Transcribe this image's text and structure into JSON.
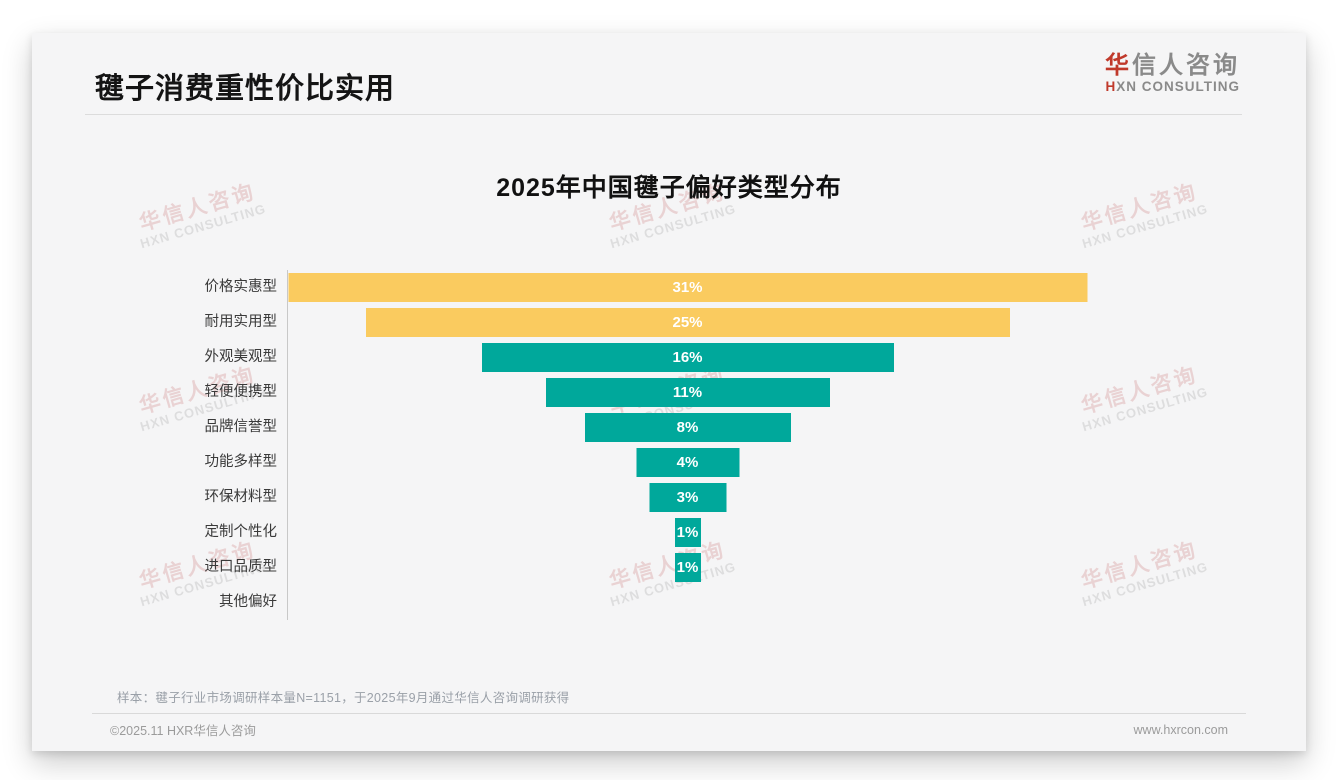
{
  "header": {
    "title": "毽子消费重性价比实用"
  },
  "logo": {
    "cn_first": "华",
    "cn_rest": "信人咨询",
    "en_first": "H",
    "en_rest": "XN CONSULTING"
  },
  "watermark": {
    "line1": "华信人咨询",
    "line2": "HXN CONSULTING"
  },
  "chart_data": {
    "type": "bar",
    "orientation": "horizontal-centered-funnel",
    "title": "2025年中国毽子偏好类型分布",
    "categories": [
      "价格实惠型",
      "耐用实用型",
      "外观美观型",
      "轻便便携型",
      "品牌信誉型",
      "功能多样型",
      "环保材料型",
      "定制个性化",
      "进口品质型",
      "其他偏好"
    ],
    "values": [
      31,
      25,
      16,
      11,
      8,
      4,
      3,
      1,
      1,
      0
    ],
    "unit": "%",
    "xlim": [
      0,
      31
    ],
    "bar_colors": [
      "#FACB5F",
      "#FACB5F",
      "#00A89B",
      "#00A89B",
      "#00A89B",
      "#00A89B",
      "#00A89B",
      "#00A89B",
      "#00A89B",
      "#00A89B"
    ],
    "value_label_color": "#FFFFFF",
    "grid": "off",
    "legend": "none",
    "axis_line_color": "#C8C8C8"
  },
  "note": "样本：毽子行业市场调研样本量N=1151，于2025年9月通过华信人咨询调研获得",
  "footer": {
    "left": "©2025.11 HXR华信人咨询",
    "right": "www.hxrcon.com"
  },
  "colors": {
    "accent_red": "#C0392B",
    "bar_yellow": "#FACB5F",
    "bar_teal": "#00A89B",
    "logo_gray": "#8A8A8A",
    "card_bg": "#F5F5F6"
  }
}
